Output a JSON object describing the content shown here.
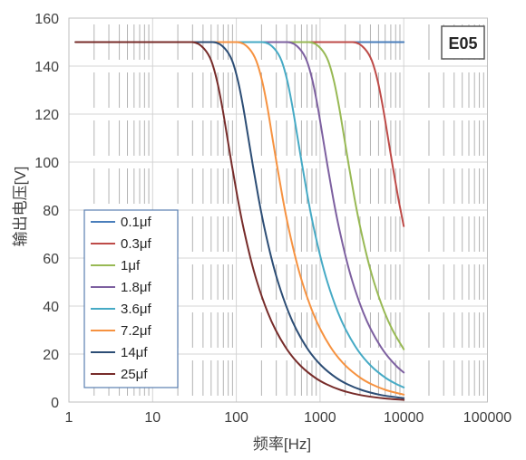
{
  "chart_data": {
    "type": "line",
    "xlabel": "频率[Hz]",
    "ylabel": "输出电压[V]",
    "x_scale": "log",
    "xlim": [
      1,
      100000
    ],
    "ylim": [
      0,
      160
    ],
    "x_ticks": [
      1,
      10,
      100,
      1000,
      10000,
      100000
    ],
    "y_ticks": [
      0,
      20,
      40,
      60,
      80,
      100,
      120,
      140,
      160
    ],
    "grid": true,
    "legend_position": "bottom-left",
    "annotation": "E05",
    "series": [
      {
        "name": "0.1μf",
        "color": "#4a7ebb",
        "points": [
          [
            1.2,
            150
          ],
          [
            10000,
            150
          ]
        ]
      },
      {
        "name": "0.3μf",
        "color": "#be4b48",
        "points": [
          [
            1.2,
            150
          ],
          [
            2450,
            150
          ],
          [
            3430,
            147.2
          ],
          [
            4165,
            142.2
          ],
          [
            4900,
            133.6
          ],
          [
            5635,
            122.9
          ],
          [
            6370,
            111.8
          ],
          [
            7350,
            98.6
          ],
          [
            8575,
            85.2
          ],
          [
            10000,
            73.3
          ]
        ]
      },
      {
        "name": "1μf",
        "color": "#98b954",
        "points": [
          [
            1.2,
            150
          ],
          [
            735,
            150
          ],
          [
            1029,
            147.2
          ],
          [
            1250,
            142.2
          ],
          [
            1470,
            133.6
          ],
          [
            1690,
            122.9
          ],
          [
            1911,
            111.8
          ],
          [
            2205,
            98.6
          ],
          [
            2573,
            85.2
          ],
          [
            2940,
            74.8
          ],
          [
            3675,
            60
          ],
          [
            4410,
            50
          ],
          [
            5880,
            37.5
          ],
          [
            7350,
            30
          ],
          [
            10000,
            22
          ]
        ]
      },
      {
        "name": "1.8μf",
        "color": "#7d60a0",
        "points": [
          [
            1.2,
            150
          ],
          [
            409,
            150
          ],
          [
            572,
            147.2
          ],
          [
            694,
            142.2
          ],
          [
            817,
            133.6
          ],
          [
            940,
            122.9
          ],
          [
            1062,
            111.8
          ],
          [
            1226,
            98.6
          ],
          [
            1430,
            85.2
          ],
          [
            1634,
            74.8
          ],
          [
            2043,
            60
          ],
          [
            2451,
            50
          ],
          [
            3268,
            37.5
          ],
          [
            4085,
            30
          ],
          [
            5719,
            21.4
          ],
          [
            8170,
            15
          ],
          [
            10000,
            12.3
          ]
        ]
      },
      {
        "name": "3.6μf",
        "color": "#46aac5",
        "points": [
          [
            1.2,
            150
          ],
          [
            204,
            150
          ],
          [
            286,
            147.2
          ],
          [
            347,
            142.2
          ],
          [
            408,
            133.6
          ],
          [
            469,
            122.9
          ],
          [
            530,
            111.8
          ],
          [
            612,
            98.6
          ],
          [
            714,
            85.2
          ],
          [
            816,
            74.8
          ],
          [
            1020,
            60
          ],
          [
            1224,
            50
          ],
          [
            1632,
            37.5
          ],
          [
            2040,
            30
          ],
          [
            2856,
            21.4
          ],
          [
            4080,
            15
          ],
          [
            6120,
            10
          ],
          [
            8160,
            7.5
          ],
          [
            10000,
            6.1
          ]
        ]
      },
      {
        "name": "7.2μf",
        "color": "#f69240",
        "points": [
          [
            1.2,
            150
          ],
          [
            102,
            150
          ],
          [
            143,
            147.2
          ],
          [
            173,
            142.2
          ],
          [
            204,
            133.6
          ],
          [
            235,
            122.9
          ],
          [
            265,
            111.8
          ],
          [
            306,
            98.6
          ],
          [
            357,
            85.2
          ],
          [
            408,
            74.8
          ],
          [
            510,
            60
          ],
          [
            612,
            50
          ],
          [
            816,
            37.5
          ],
          [
            1020,
            30
          ],
          [
            1428,
            21.4
          ],
          [
            2040,
            15
          ],
          [
            3060,
            10
          ],
          [
            4080,
            7.5
          ],
          [
            6120,
            5
          ],
          [
            10000,
            3.1
          ]
        ]
      },
      {
        "name": "14μf",
        "color": "#2c4d75",
        "points": [
          [
            1.2,
            150
          ],
          [
            52.5,
            150
          ],
          [
            73.5,
            147.2
          ],
          [
            89.3,
            142.2
          ],
          [
            105,
            133.6
          ],
          [
            120.8,
            122.9
          ],
          [
            136.5,
            111.8
          ],
          [
            157.5,
            98.6
          ],
          [
            183.8,
            85.2
          ],
          [
            210,
            74.8
          ],
          [
            262.5,
            60
          ],
          [
            315,
            50
          ],
          [
            420,
            37.5
          ],
          [
            525,
            30
          ],
          [
            735,
            21.4
          ],
          [
            1050,
            15
          ],
          [
            1575,
            10
          ],
          [
            2100,
            7.5
          ],
          [
            3150,
            5
          ],
          [
            5250,
            3
          ],
          [
            10000,
            1.6
          ]
        ]
      },
      {
        "name": "25μf",
        "color": "#772c2a",
        "points": [
          [
            1.2,
            150
          ],
          [
            29.5,
            150
          ],
          [
            41.3,
            147.2
          ],
          [
            50.2,
            142.2
          ],
          [
            59,
            133.6
          ],
          [
            67.9,
            122.9
          ],
          [
            76.7,
            111.8
          ],
          [
            88.5,
            98.6
          ],
          [
            103.3,
            85.2
          ],
          [
            118,
            74.8
          ],
          [
            147.5,
            60
          ],
          [
            177,
            50
          ],
          [
            236,
            37.5
          ],
          [
            295,
            30
          ],
          [
            413,
            21.4
          ],
          [
            590,
            15
          ],
          [
            885,
            10
          ],
          [
            1180,
            7.5
          ],
          [
            1770,
            5
          ],
          [
            2950,
            3
          ],
          [
            5900,
            1.5
          ],
          [
            10000,
            0.9
          ]
        ]
      }
    ]
  }
}
